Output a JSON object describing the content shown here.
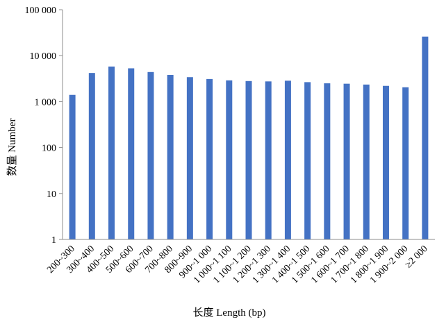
{
  "chart_data": {
    "type": "bar",
    "xlabel": "长度 Length (bp)",
    "ylabel": "数量 Number",
    "yscale": "log",
    "ylim": [
      1,
      100000
    ],
    "yticks": [
      1,
      10,
      100,
      1000,
      10000,
      100000
    ],
    "ytick_labels": [
      "1",
      "10",
      "100",
      "1 000",
      "10 000",
      "100 000"
    ],
    "grid": false,
    "legend": "none",
    "bar_color": "#4472C4",
    "categories": [
      "200~300",
      "300~400",
      "400~500",
      "500~600",
      "600~700",
      "700~800",
      "800~900",
      "900~1 000",
      "1 000~1 100",
      "1 100~1 200",
      "1 200~1 300",
      "1 300~1 400",
      "1 400~1 500",
      "1 500~1 600",
      "1 600~1 700",
      "1 700~1 800",
      "1 800~1 900",
      "1 900~2 000",
      "≥2 000"
    ],
    "values": [
      1400,
      4200,
      5800,
      5300,
      4400,
      3800,
      3400,
      3100,
      2900,
      2800,
      2750,
      2850,
      2650,
      2500,
      2450,
      2350,
      2200,
      2050,
      26000
    ]
  }
}
